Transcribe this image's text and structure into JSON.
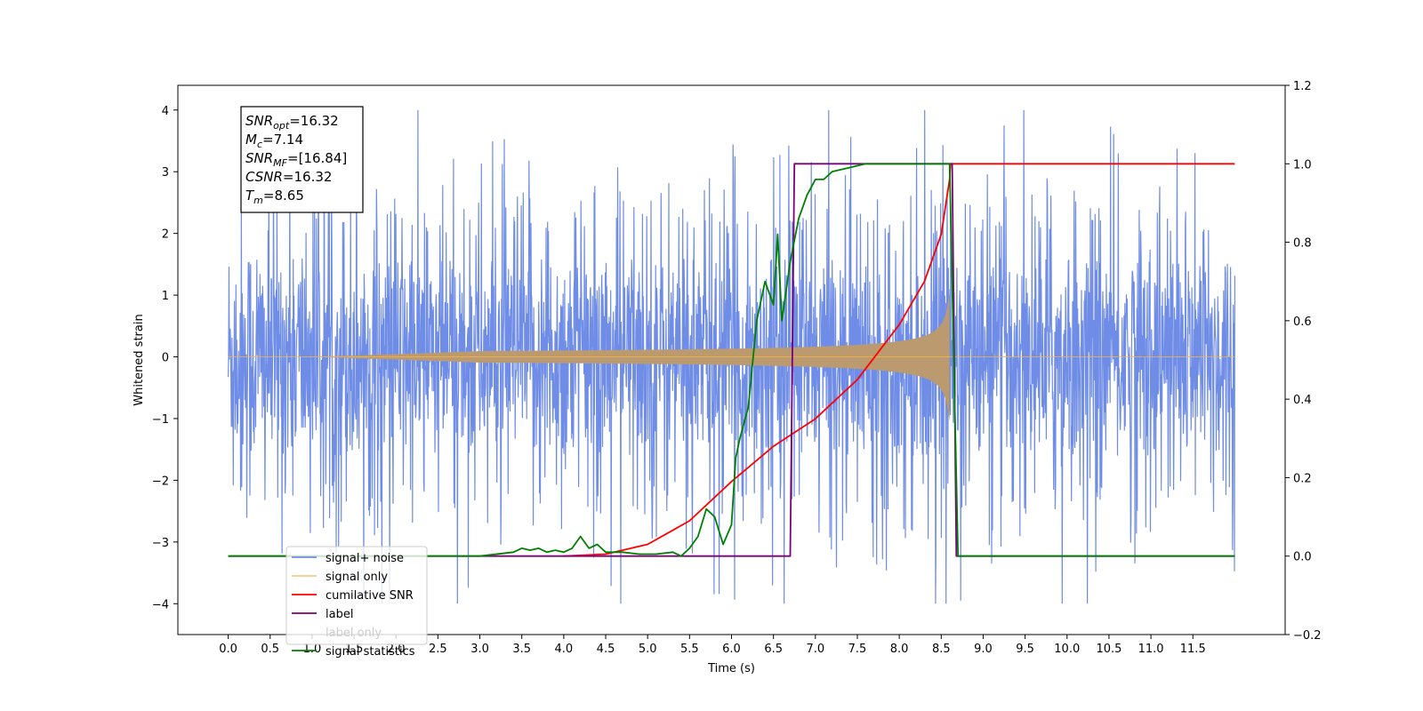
{
  "chart_data": {
    "type": "line",
    "title": "",
    "xlabel": "Time (s)",
    "ylabel": "Whitened strain",
    "y2label": "",
    "xlim": [
      -0.6,
      12.6
    ],
    "ylim": [
      -4.5,
      4.4
    ],
    "y2lim": [
      -0.2,
      1.2
    ],
    "xticks": [
      "0.0",
      "0.5",
      "1.0",
      "1.5",
      "2.0",
      "2.5",
      "3.0",
      "3.5",
      "4.0",
      "4.5",
      "5.0",
      "5.5",
      "6.0",
      "6.5",
      "7.0",
      "7.5",
      "8.0",
      "8.5",
      "9.0",
      "9.5",
      "10.0",
      "10.5",
      "11.0",
      "11.5"
    ],
    "yticks": [
      "4",
      "3",
      "2",
      "1",
      "0",
      "−1",
      "−2",
      "−3",
      "−4"
    ],
    "y2ticks": [
      "1.2",
      "1.0",
      "0.8",
      "0.6",
      "0.4",
      "0.2",
      "0.0",
      "−0.2"
    ],
    "grid": false,
    "legend_position": "lower-left",
    "info_box": {
      "lines": [
        {
          "sym": "SNR",
          "sub": "opt",
          "val": "=16.32"
        },
        {
          "sym": "M",
          "sub": "c",
          "val": "=7.14"
        },
        {
          "sym": "SNR",
          "sub": "MF",
          "val": "=[16.84]"
        },
        {
          "sym": "CSNR",
          "sub": "",
          "val": "=16.32"
        },
        {
          "sym": "T",
          "sub": "m",
          "val": "=8.65"
        }
      ]
    },
    "series": [
      {
        "name": "signal+ noise",
        "color": "#6f8de6",
        "axis": "left",
        "kind": "noise",
        "t_start": 0.0,
        "t_end": 12.0,
        "envelope": 2.4
      },
      {
        "name": "signal only",
        "color": "#f5b342",
        "axis": "left",
        "kind": "chirp",
        "t_start": 0.0,
        "t_merge": 8.6,
        "t_end": 12.0,
        "peak_amplitude": 1.05
      },
      {
        "name": "cumilative SNR",
        "color": "#ff0000",
        "axis": "right",
        "x": [
          4.0,
          4.5,
          5.0,
          5.5,
          6.0,
          6.5,
          7.0,
          7.5,
          8.0,
          8.3,
          8.5,
          8.6,
          8.61,
          12.0
        ],
        "y": [
          0.0,
          0.005,
          0.03,
          0.09,
          0.19,
          0.28,
          0.35,
          0.45,
          0.59,
          0.7,
          0.82,
          0.96,
          1.0,
          1.0
        ]
      },
      {
        "name": "label",
        "color": "#7b007b",
        "axis": "right",
        "x": [
          0.0,
          6.7,
          6.75,
          8.63,
          8.68,
          12.0
        ],
        "y": [
          0.0,
          0.0,
          1.0,
          1.0,
          0.0,
          0.0
        ]
      },
      {
        "name": "label only",
        "color": "#bbbbbb",
        "axis": "right",
        "hidden": true,
        "x": [],
        "y": []
      },
      {
        "name": "signal statistics",
        "color": "#008000",
        "axis": "right",
        "x": [
          0.0,
          2.3,
          3.0,
          3.4,
          3.5,
          3.6,
          3.7,
          3.8,
          3.9,
          4.0,
          4.1,
          4.2,
          4.3,
          4.4,
          4.5,
          4.7,
          4.9,
          5.1,
          5.3,
          5.4,
          5.5,
          5.6,
          5.7,
          5.8,
          5.9,
          6.0,
          6.05,
          6.1,
          6.2,
          6.3,
          6.4,
          6.5,
          6.55,
          6.6,
          6.7,
          6.8,
          6.9,
          7.0,
          7.1,
          7.2,
          7.4,
          7.6,
          8.0,
          8.6,
          8.65,
          8.7,
          12.0
        ],
        "y": [
          0.0,
          0.0,
          0.0,
          0.01,
          0.02,
          0.015,
          0.02,
          0.01,
          0.015,
          0.01,
          0.02,
          0.05,
          0.02,
          0.03,
          0.01,
          0.01,
          0.005,
          0.005,
          0.01,
          0.0,
          0.02,
          0.05,
          0.12,
          0.1,
          0.03,
          0.08,
          0.25,
          0.3,
          0.38,
          0.6,
          0.7,
          0.64,
          0.82,
          0.6,
          0.75,
          0.86,
          0.92,
          0.96,
          0.96,
          0.98,
          0.99,
          1.0,
          1.0,
          1.0,
          0.5,
          0.0,
          0.0
        ]
      }
    ]
  }
}
